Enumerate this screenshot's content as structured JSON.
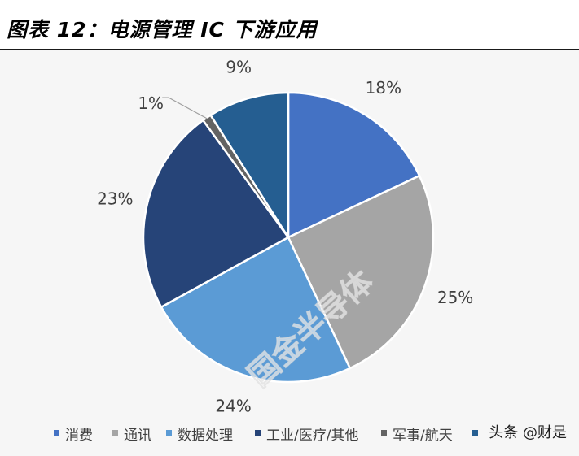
{
  "header": {
    "title": "图表 12：电源管理 IC 下游应用"
  },
  "watermark": "国金半导体",
  "corner_mark": "头条 @财是",
  "chart_data": {
    "type": "pie",
    "title": "图表 12：电源管理 IC 下游应用",
    "start": "12 o'clock",
    "direction": "clockwise",
    "slices": [
      {
        "label": "消费",
        "value": 18,
        "value_label": "18%",
        "color": "#4472c4"
      },
      {
        "label": "通讯",
        "value": 25,
        "value_label": "25%",
        "color": "#a5a5a5"
      },
      {
        "label": "数据处理",
        "value": 24,
        "value_label": "24%",
        "color": "#5b9bd5"
      },
      {
        "label": "工业/医疗/其他",
        "value": 23,
        "value_label": "23%",
        "color": "#264478"
      },
      {
        "label": "军事/航天",
        "value": 1,
        "value_label": "1%",
        "color": "#636363"
      },
      {
        "label": "",
        "value": 9,
        "value_label": "9%",
        "color": "#255e91"
      }
    ],
    "legend_position": "bottom"
  }
}
